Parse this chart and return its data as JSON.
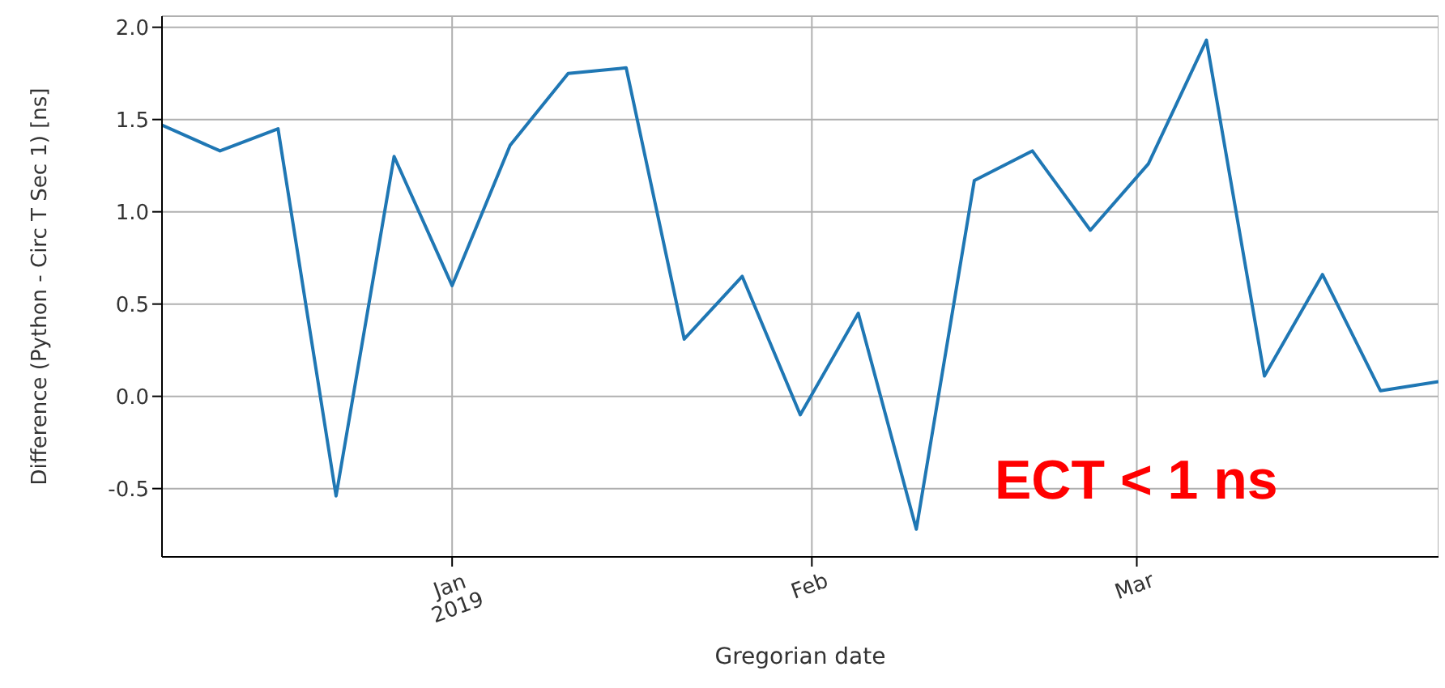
{
  "chart_data": {
    "type": "line",
    "xlabel": "Gregorian date",
    "ylabel": "Difference (Python - Circ T Sec 1) [ns]",
    "x": [
      "2018-12-07",
      "2018-12-12",
      "2018-12-17",
      "2018-12-22",
      "2018-12-27",
      "2019-01-01",
      "2019-01-06",
      "2019-01-11",
      "2019-01-16",
      "2019-01-21",
      "2019-01-26",
      "2019-01-31",
      "2019-02-05",
      "2019-02-10",
      "2019-02-15",
      "2019-02-20",
      "2019-02-25",
      "2019-03-02",
      "2019-03-07",
      "2019-03-12",
      "2019-03-17",
      "2019-03-22",
      "2019-03-27"
    ],
    "series": [
      {
        "color": "#1f77b4",
        "values": [
          1.47,
          1.33,
          1.45,
          -0.54,
          1.3,
          0.6,
          1.36,
          1.75,
          1.78,
          0.31,
          0.65,
          -0.1,
          0.45,
          -0.72,
          1.17,
          1.33,
          0.9,
          1.26,
          1.93,
          0.11,
          0.66,
          0.03,
          0.08
        ]
      }
    ],
    "xlim": [
      "2018-12-07",
      "2019-03-27"
    ],
    "xticks": [
      {
        "value": "2019-01-01",
        "label": "Jan\n2019"
      },
      {
        "value": "2019-02-01",
        "label": "Feb"
      },
      {
        "value": "2019-03-01",
        "label": "Mar"
      }
    ],
    "ylim": [
      -0.87,
      2.06
    ],
    "yticks": [
      -0.5,
      {
        "value": 0,
        "label": "0.0"
      },
      0.5,
      {
        "value": 1,
        "label": "1.0"
      },
      1.5,
      {
        "value": 2,
        "label": "2.0"
      }
    ],
    "grid": true,
    "marker": "none",
    "line_style": "solid",
    "annotations": [
      "ECT < 1 ns"
    ]
  }
}
